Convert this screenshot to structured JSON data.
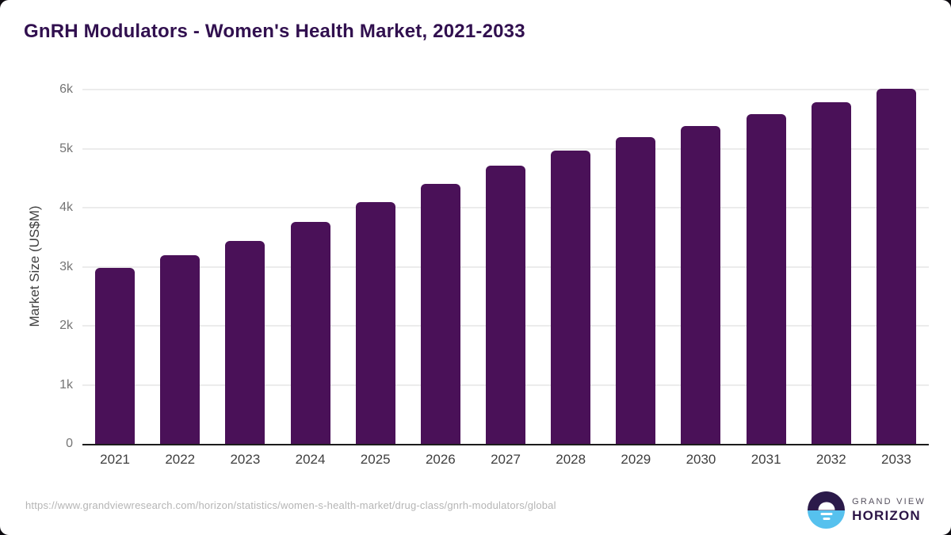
{
  "page": {
    "title": "GnRH Modulators - Women's Health Market, 2021-2033"
  },
  "chart_data": {
    "type": "bar",
    "title": "GnRH Modulators - Women's Health Market, 2021-2033",
    "categories": [
      "2021",
      "2022",
      "2023",
      "2024",
      "2025",
      "2026",
      "2027",
      "2028",
      "2029",
      "2030",
      "2031",
      "2032",
      "2033"
    ],
    "values": [
      2980,
      3190,
      3430,
      3760,
      4090,
      4400,
      4710,
      4960,
      5190,
      5380,
      5590,
      5780,
      6020
    ],
    "xlabel": "",
    "ylabel": "Market Size (US$M)",
    "ylim": [
      0,
      6000
    ],
    "yticks": [
      {
        "value": 0,
        "label": "0"
      },
      {
        "value": 1000,
        "label": "1k"
      },
      {
        "value": 2000,
        "label": "2k"
      },
      {
        "value": 3000,
        "label": "3k"
      },
      {
        "value": 4000,
        "label": "4k"
      },
      {
        "value": 5000,
        "label": "5k"
      },
      {
        "value": 6000,
        "label": "6k"
      }
    ],
    "grid": "horizontal",
    "legend": "none",
    "bar_color": "#4a1158"
  },
  "footer": {
    "source_url": "https://www.grandviewresearch.com/horizon/statistics/women-s-health-market/drug-class/gnrh-modulators/global",
    "logo": {
      "brand_top": "GRAND VIEW",
      "brand_bottom": "HORIZON",
      "icon": "sunrise-horizon-icon"
    }
  },
  "colors": {
    "title": "#31104f",
    "bar": "#4a1158",
    "gridline": "#ececec",
    "axis_line": "#1c1c1c",
    "y_tick_label": "#757575",
    "x_tick_label": "#3f3f3f",
    "source_url": "#b5b5b5",
    "logo_purple": "#2b1a4a",
    "logo_blue": "#56c1ee",
    "background": "#ffffff"
  }
}
